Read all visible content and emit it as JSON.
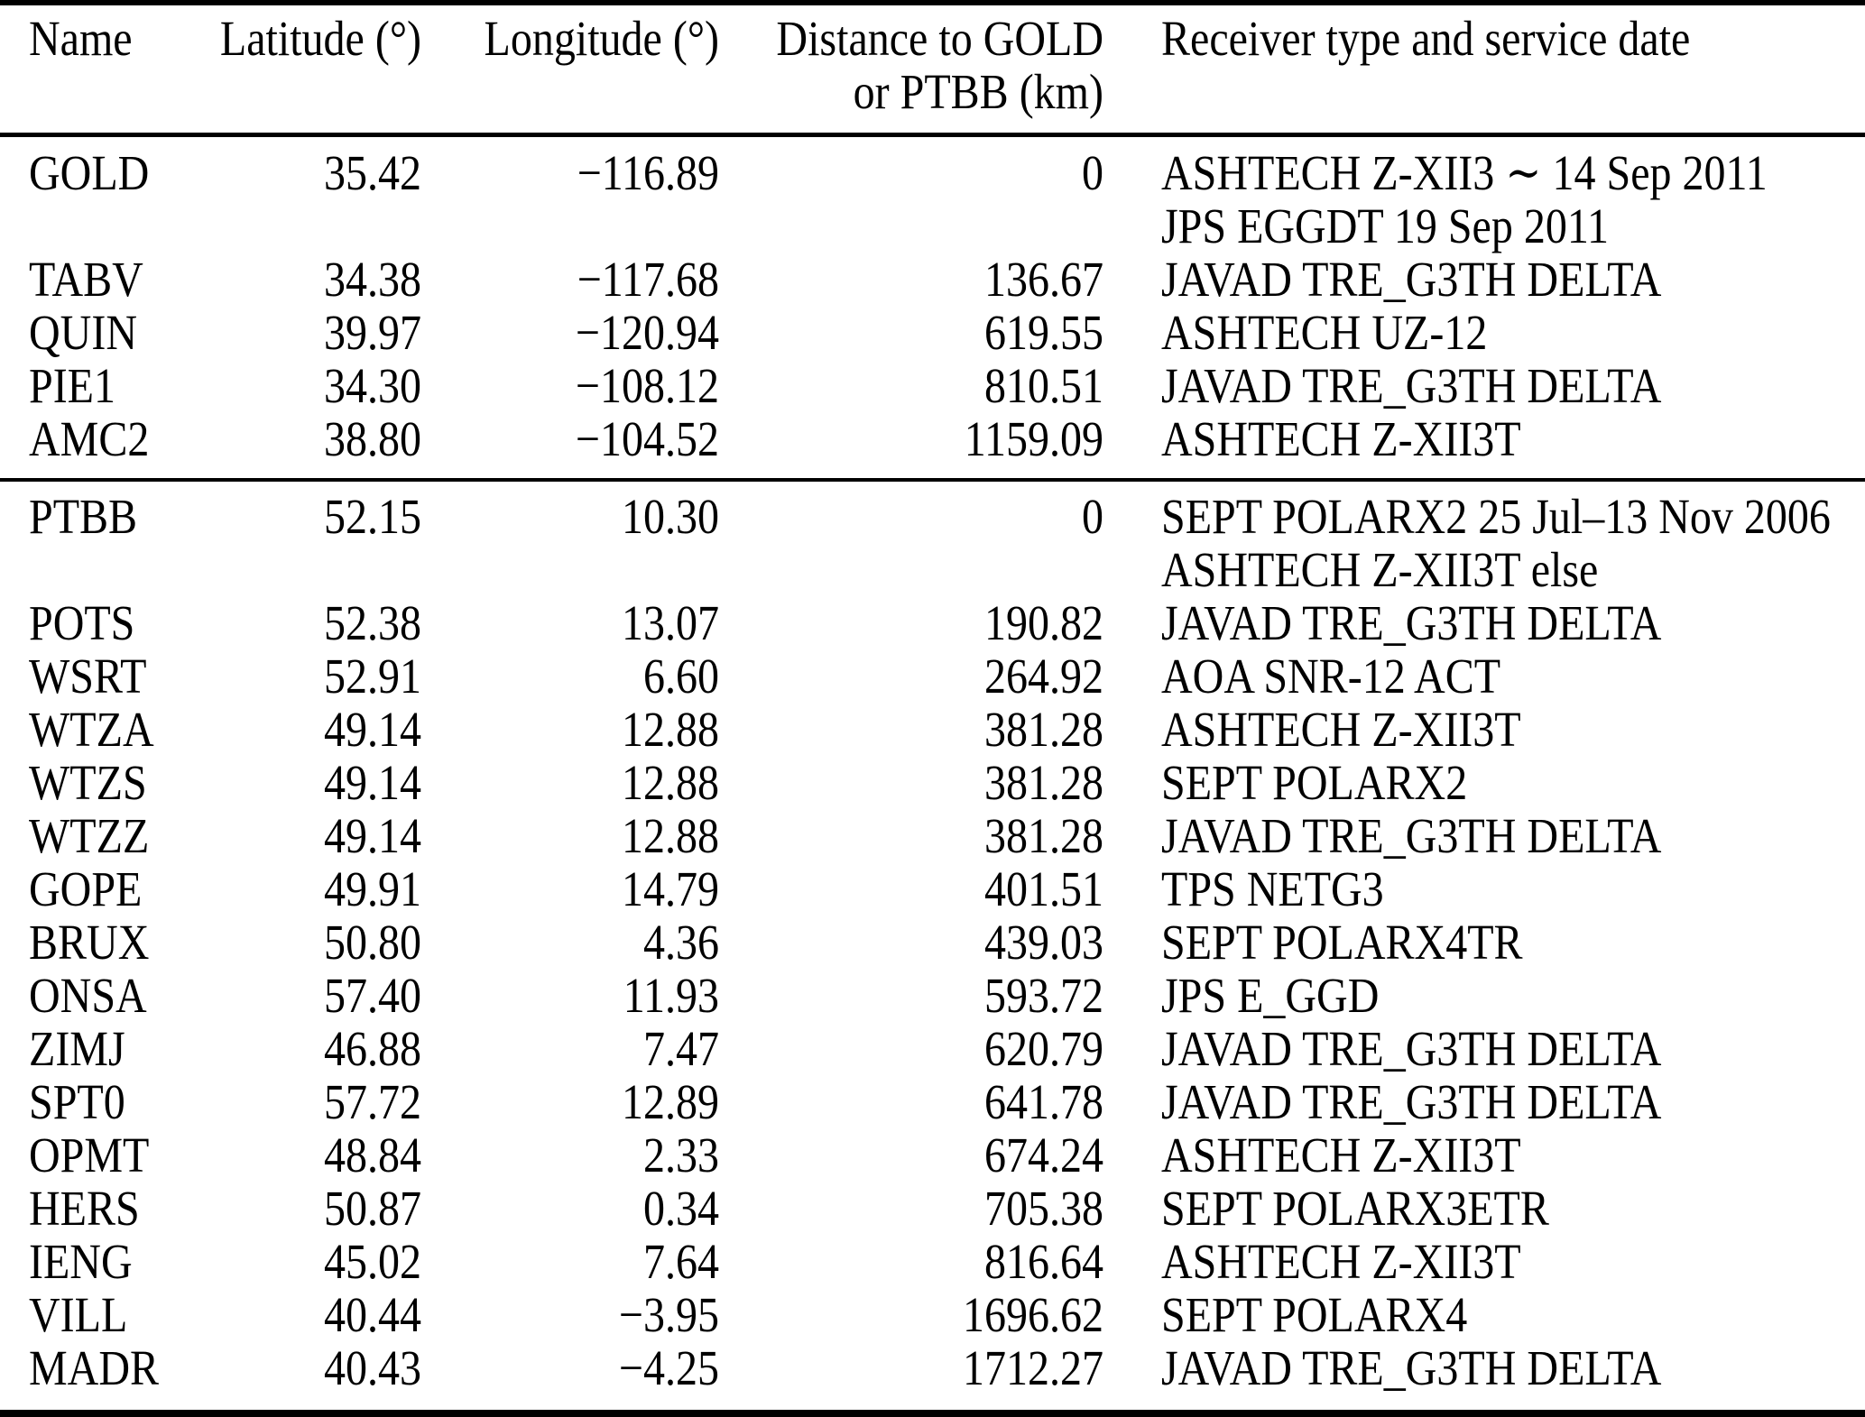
{
  "table": {
    "headers": {
      "name": "Name",
      "latitude": "Latitude (°)",
      "longitude": "Longitude (°)",
      "distance_line1": "Distance to GOLD",
      "distance_line2": "or PTBB (km)",
      "receiver": "Receiver type and service date"
    },
    "sections": [
      {
        "rows": [
          {
            "name": "GOLD",
            "lat": "35.42",
            "lon": "−116.89",
            "dist": "0",
            "receiver": [
              "ASHTECH Z-XII3 ∼ 14 Sep 2011",
              "JPS EGGDT 19 Sep 2011"
            ]
          },
          {
            "name": "TABV",
            "lat": "34.38",
            "lon": "−117.68",
            "dist": "136.67",
            "receiver": [
              "JAVAD TRE_G3TH DELTA"
            ]
          },
          {
            "name": "QUIN",
            "lat": "39.97",
            "lon": "−120.94",
            "dist": "619.55",
            "receiver": [
              "ASHTECH UZ-12"
            ]
          },
          {
            "name": "PIE1",
            "lat": "34.30",
            "lon": "−108.12",
            "dist": "810.51",
            "receiver": [
              "JAVAD TRE_G3TH DELTA"
            ]
          },
          {
            "name": "AMC2",
            "lat": "38.80",
            "lon": "−104.52",
            "dist": "1159.09",
            "receiver": [
              "ASHTECH Z-XII3T"
            ]
          }
        ]
      },
      {
        "rows": [
          {
            "name": "PTBB",
            "lat": "52.15",
            "lon": "10.30",
            "dist": "0",
            "receiver": [
              "SEPT POLARX2 25 Jul–13 Nov 2006",
              "ASHTECH Z-XII3T else"
            ]
          },
          {
            "name": "POTS",
            "lat": "52.38",
            "lon": "13.07",
            "dist": "190.82",
            "receiver": [
              "JAVAD TRE_G3TH DELTA"
            ]
          },
          {
            "name": "WSRT",
            "lat": "52.91",
            "lon": "6.60",
            "dist": "264.92",
            "receiver": [
              "AOA SNR-12 ACT"
            ]
          },
          {
            "name": "WTZA",
            "lat": "49.14",
            "lon": "12.88",
            "dist": "381.28",
            "receiver": [
              "ASHTECH Z-XII3T"
            ]
          },
          {
            "name": "WTZS",
            "lat": "49.14",
            "lon": "12.88",
            "dist": "381.28",
            "receiver": [
              "SEPT POLARX2"
            ]
          },
          {
            "name": "WTZZ",
            "lat": "49.14",
            "lon": "12.88",
            "dist": "381.28",
            "receiver": [
              "JAVAD TRE_G3TH DELTA"
            ]
          },
          {
            "name": "GOPE",
            "lat": "49.91",
            "lon": "14.79",
            "dist": "401.51",
            "receiver": [
              "TPS NETG3"
            ]
          },
          {
            "name": "BRUX",
            "lat": "50.80",
            "lon": "4.36",
            "dist": "439.03",
            "receiver": [
              "SEPT POLARX4TR"
            ]
          },
          {
            "name": "ONSA",
            "lat": "57.40",
            "lon": "11.93",
            "dist": "593.72",
            "receiver": [
              "JPS E_GGD"
            ]
          },
          {
            "name": "ZIMJ",
            "lat": "46.88",
            "lon": "7.47",
            "dist": "620.79",
            "receiver": [
              "JAVAD TRE_G3TH DELTA"
            ]
          },
          {
            "name": "SPT0",
            "lat": "57.72",
            "lon": "12.89",
            "dist": "641.78",
            "receiver": [
              "JAVAD TRE_G3TH DELTA"
            ]
          },
          {
            "name": "OPMT",
            "lat": "48.84",
            "lon": "2.33",
            "dist": "674.24",
            "receiver": [
              "ASHTECH Z-XII3T"
            ]
          },
          {
            "name": "HERS",
            "lat": "50.87",
            "lon": "0.34",
            "dist": "705.38",
            "receiver": [
              "SEPT POLARX3ETR"
            ]
          },
          {
            "name": "IENG",
            "lat": "45.02",
            "lon": "7.64",
            "dist": "816.64",
            "receiver": [
              "ASHTECH Z-XII3T"
            ]
          },
          {
            "name": "VILL",
            "lat": "40.44",
            "lon": "−3.95",
            "dist": "1696.62",
            "receiver": [
              "SEPT POLARX4"
            ]
          },
          {
            "name": "MADR",
            "lat": "40.43",
            "lon": "−4.25",
            "dist": "1712.27",
            "receiver": [
              "JAVAD TRE_G3TH DELTA"
            ]
          }
        ]
      }
    ]
  }
}
